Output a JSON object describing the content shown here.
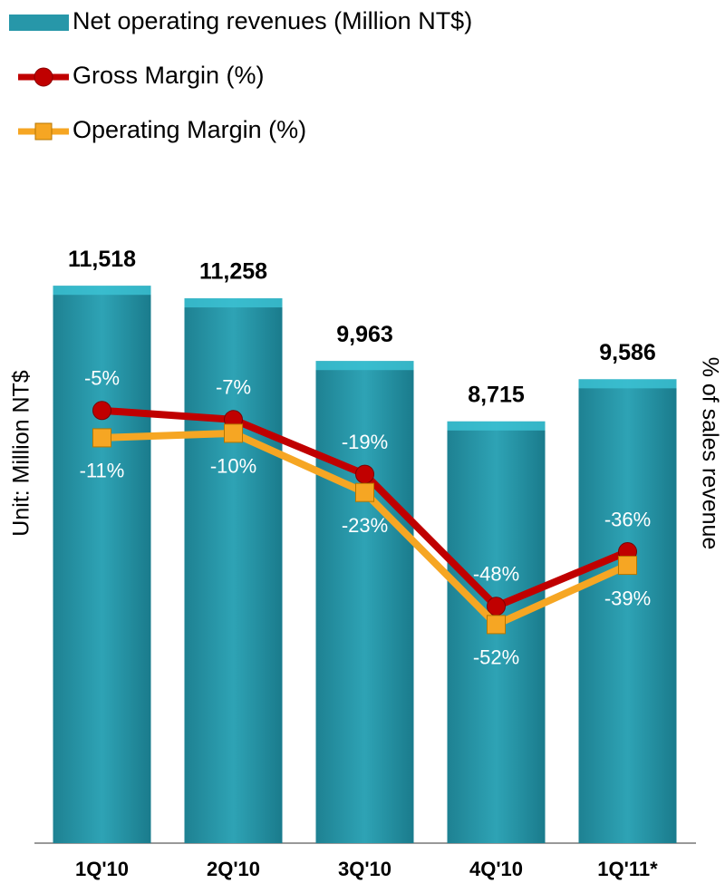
{
  "chart_data": {
    "type": "bar",
    "x_label": "Unit: Million NT$",
    "y2_label": "% of sales revenue",
    "categories": [
      "1Q'10",
      "2Q'10",
      "3Q'10",
      "4Q'10",
      "1Q'11*"
    ],
    "ylim": [
      0,
      16000
    ],
    "y2lim": [
      -100,
      70
    ],
    "series": [
      {
        "name": "Net operating revenues (Million NT$)",
        "color": "#2797a9",
        "values": [
          11518,
          11258,
          9963,
          8715,
          9586
        ],
        "value_labels": [
          "11,518",
          "11,258",
          "9,963",
          "8,715",
          "9,586"
        ]
      },
      {
        "name": "Gross Margin (%)",
        "type": "line",
        "axis": "y2",
        "color": "#c00000",
        "values": [
          -5,
          -7,
          -19,
          -48,
          -36
        ],
        "value_labels": [
          "-5%",
          "-7%",
          "-19%",
          "-48%",
          "-36%"
        ]
      },
      {
        "name": "Operating Margin (%)",
        "type": "line",
        "axis": "y2",
        "color": "#f6a623",
        "values": [
          -11,
          -10,
          -23,
          -52,
          -39
        ],
        "value_labels": [
          "-11%",
          "-10%",
          "-23%",
          "-52%",
          "-39%"
        ]
      }
    ]
  }
}
